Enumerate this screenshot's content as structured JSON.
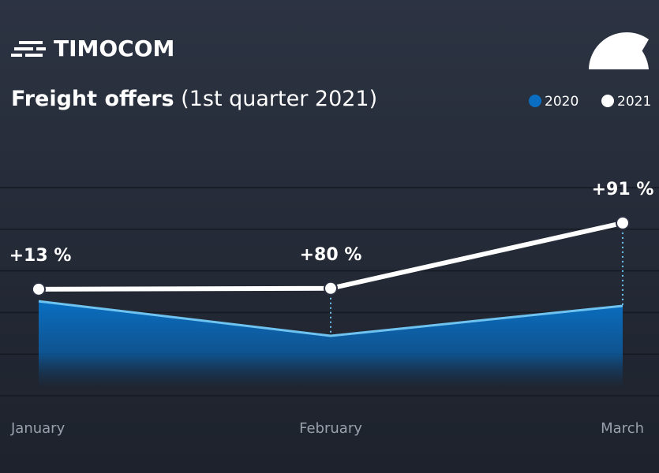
{
  "brand": "TIMOCOM",
  "chart_data": {
    "type": "line",
    "title": "Freight offers",
    "subtitle": "(1st quarter 2021)",
    "categories": [
      "January",
      "February",
      "March"
    ],
    "series": [
      {
        "name": "2020",
        "color": "#0a6fc2",
        "values": [
          2.27,
          1.44,
          2.16
        ]
      },
      {
        "name": "2021",
        "color": "#ffffff",
        "values": [
          2.56,
          2.58,
          4.15
        ]
      }
    ],
    "annotations": [
      "+13 %",
      "+80 %",
      "+91 %"
    ],
    "ylim": [
      0,
      5
    ],
    "yticks": [
      0,
      1,
      2,
      3,
      4,
      5
    ],
    "grid": true,
    "legend": "top-right"
  }
}
